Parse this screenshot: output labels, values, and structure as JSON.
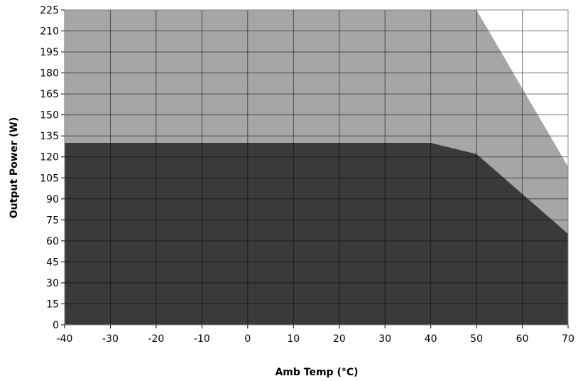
{
  "chart_data": {
    "type": "area",
    "xlabel": "Amb Temp (°C)",
    "ylabel": "Output Power (W)",
    "xlim": [
      -40,
      70
    ],
    "ylim": [
      0,
      225
    ],
    "x_ticks": [
      -40,
      -30,
      -20,
      -10,
      0,
      10,
      20,
      30,
      40,
      50,
      60,
      70
    ],
    "y_ticks": [
      0,
      15,
      30,
      45,
      60,
      75,
      90,
      105,
      120,
      135,
      150,
      165,
      180,
      195,
      210,
      225
    ],
    "grid": true,
    "legend": "none",
    "series": [
      {
        "color": "#a6a6a6",
        "points": [
          [
            -40,
            225
          ],
          [
            50,
            225
          ],
          [
            70,
            113
          ]
        ]
      },
      {
        "color": "#3a3a3a",
        "points": [
          [
            -40,
            130
          ],
          [
            40,
            130
          ],
          [
            50,
            122
          ],
          [
            70,
            65
          ]
        ]
      }
    ],
    "colors": {
      "grid": "#000000",
      "background": "#ffffff",
      "axis": "#000000"
    }
  }
}
